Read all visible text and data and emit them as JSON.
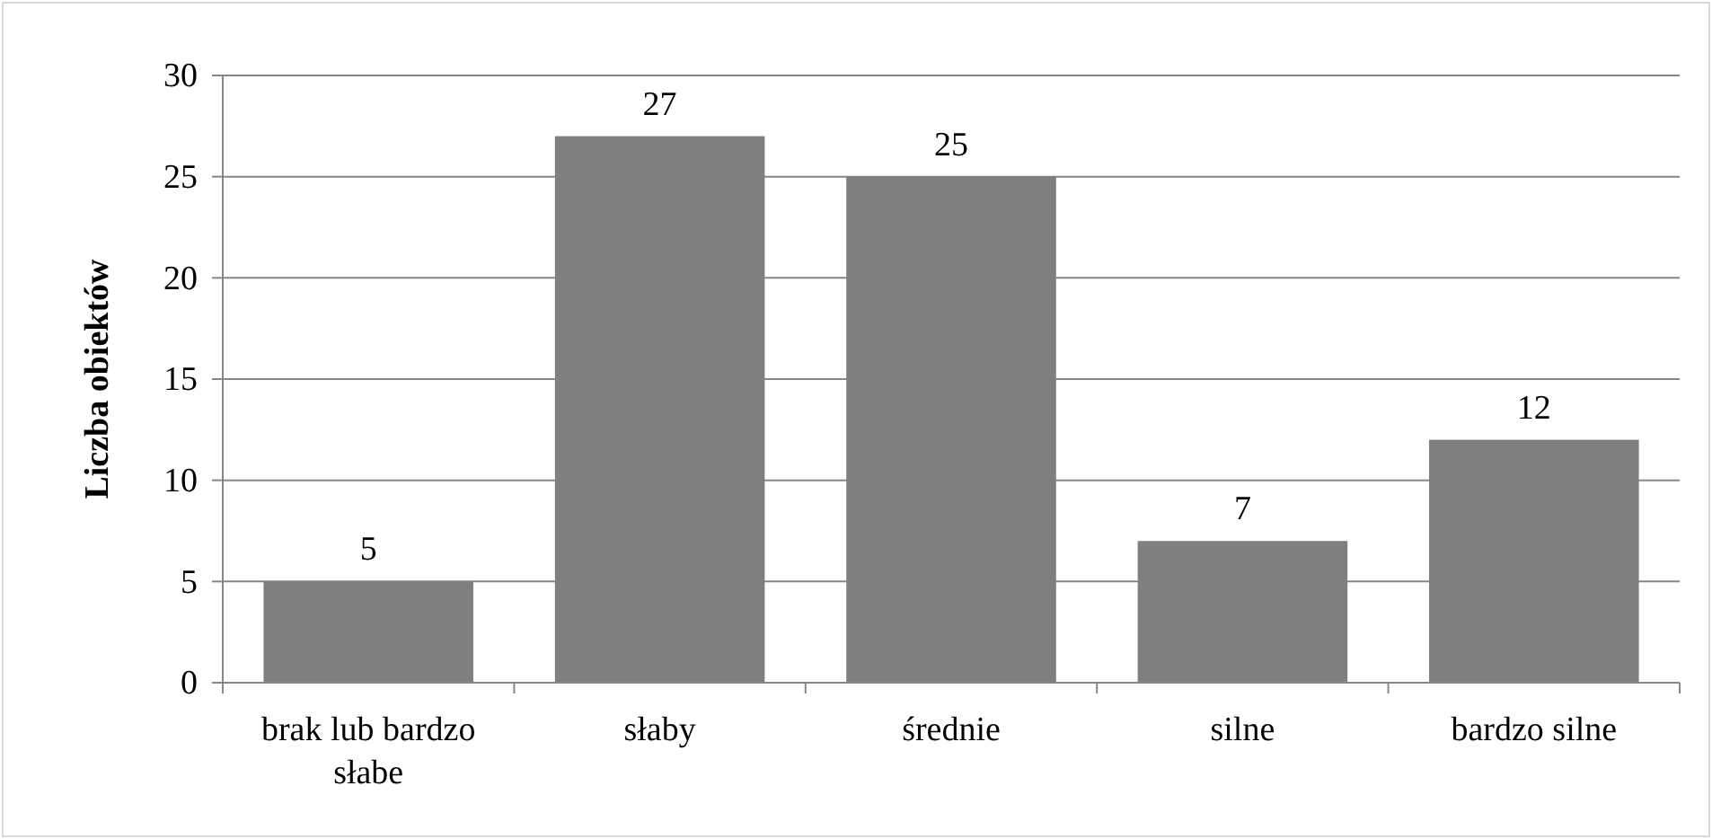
{
  "chart_data": {
    "type": "bar",
    "ylabel": "Liczba obiektów",
    "categories": [
      "brak lub bardzo słabe",
      "słaby",
      "średnie",
      "silne",
      "bardzo silne"
    ],
    "values": [
      5,
      27,
      25,
      7,
      12
    ],
    "color": "#7f7f7f",
    "ylim": [
      0,
      30
    ],
    "yticks": [
      0,
      5,
      10,
      15,
      20,
      25,
      30
    ],
    "grid": "y",
    "data_labels": true
  }
}
